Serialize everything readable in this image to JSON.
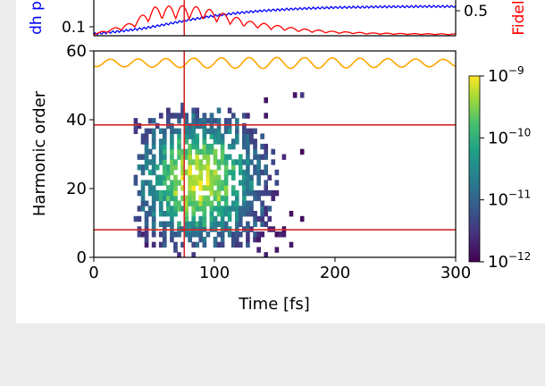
{
  "chart_data": [
    {
      "type": "line",
      "panel": "top",
      "left_axis": {
        "label": "dh p",
        "color": "#0000ff",
        "tick_labels": [
          {
            "value": 0.1,
            "label": "0.1"
          }
        ]
      },
      "right_axis": {
        "label": "Fidel",
        "color": "#ff0000",
        "tick_labels": [
          {
            "value": 0.5,
            "label": "0.5"
          }
        ]
      },
      "series": [
        {
          "color": "#0000ff",
          "x": [
            0,
            20,
            40,
            60,
            80,
            100,
            120,
            140,
            160,
            180,
            200,
            220,
            240,
            260,
            280,
            300
          ],
          "y": [
            0.05,
            0.12,
            0.2,
            0.32,
            0.45,
            0.56,
            0.64,
            0.7,
            0.74,
            0.77,
            0.79,
            0.8,
            0.81,
            0.815,
            0.82,
            0.82
          ]
        },
        {
          "color": "#ff0000",
          "x": [
            0,
            30,
            50,
            70,
            90,
            110,
            130,
            150,
            170,
            200,
            230,
            260,
            300
          ],
          "y": [
            0.05,
            0.35,
            0.8,
            0.85,
            0.8,
            0.6,
            0.4,
            0.3,
            0.2,
            0.12,
            0.08,
            0.06,
            0.05
          ]
        }
      ]
    },
    {
      "type": "heatmap",
      "panel": "bottom",
      "xlabel": "Time [fs]",
      "ylabel": "Harmonic order",
      "xlim": [
        0,
        300
      ],
      "ylim": [
        0,
        60
      ],
      "x_ticks": [
        0,
        100,
        200,
        300
      ],
      "y_ticks": [
        0,
        20,
        40,
        60
      ],
      "x_tick_labels": [
        "0",
        "100",
        "200",
        "300"
      ],
      "y_tick_labels": [
        "0",
        "20",
        "40",
        "60"
      ],
      "colormap": "viridis",
      "colorbar": {
        "scale": "log",
        "ticks": [
          {
            "base": "10",
            "exp": "−9",
            "value": 1e-09
          },
          {
            "base": "10",
            "exp": "−10",
            "value": 1e-10
          },
          {
            "base": "10",
            "exp": "−11",
            "value": 1e-11
          },
          {
            "base": "10",
            "exp": "−12",
            "value": 1e-12
          }
        ]
      },
      "reference_lines": {
        "color": "#d62728",
        "horizontal_y": [
          38.5,
          8
        ],
        "vertical_x": [
          75
        ]
      },
      "pulse_envelope": {
        "color": "#ffa500",
        "center_y": 56.5,
        "amplitude": 1.6,
        "period_fs": 23,
        "x_range": [
          0,
          300
        ]
      },
      "intensity_region": {
        "x_range": [
          30,
          175
        ],
        "y_range": [
          0,
          47
        ],
        "peak_x": 85,
        "peak_y": 22
      }
    }
  ]
}
